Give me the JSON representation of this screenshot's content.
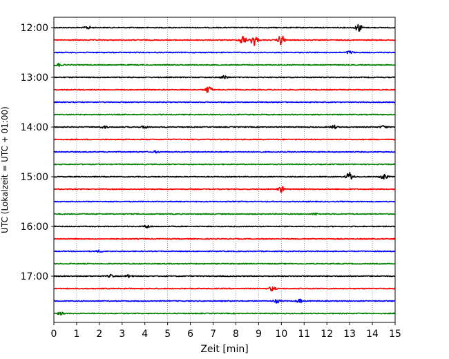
{
  "chart_data": {
    "type": "line",
    "title": "",
    "xlabel": "Zeit  [min]",
    "ylabel": "UTC (Lokalzeit = UTC + 01:00)",
    "xlim": [
      0,
      15
    ],
    "x_ticks": [
      "0",
      "1",
      "2",
      "3",
      "4",
      "5",
      "6",
      "7",
      "8",
      "9",
      "10",
      "11",
      "12",
      "13",
      "14",
      "15"
    ],
    "y_ticks": [
      "12:00",
      "13:00",
      "14:00",
      "15:00",
      "16:00",
      "17:00"
    ],
    "grid": "vertical dotted lines at each minute",
    "legend": "none",
    "trace_colors": [
      "#000000",
      "#ff0000",
      "#0000ff",
      "#008000"
    ],
    "series": [
      {
        "start": "12:00",
        "color": "#000000",
        "events": [
          {
            "minute": 1.5,
            "amp": 0.12
          },
          {
            "minute": 13.4,
            "amp": 0.35
          }
        ]
      },
      {
        "start": "12:15",
        "color": "#ff0000",
        "events": [
          {
            "minute": 8.3,
            "amp": 0.4
          },
          {
            "minute": 8.8,
            "amp": 0.5
          },
          {
            "minute": 10.0,
            "amp": 0.45
          }
        ]
      },
      {
        "start": "12:30",
        "color": "#0000ff",
        "events": [
          {
            "minute": 13.0,
            "amp": 0.12
          }
        ]
      },
      {
        "start": "12:45",
        "color": "#008000",
        "events": [
          {
            "minute": 0.2,
            "amp": 0.12
          }
        ]
      },
      {
        "start": "13:00",
        "color": "#000000",
        "events": [
          {
            "minute": 7.5,
            "amp": 0.15
          }
        ]
      },
      {
        "start": "13:15",
        "color": "#ff0000",
        "events": [
          {
            "minute": 6.8,
            "amp": 0.3
          }
        ]
      },
      {
        "start": "13:30",
        "color": "#0000ff",
        "events": []
      },
      {
        "start": "13:45",
        "color": "#008000",
        "events": []
      },
      {
        "start": "14:00",
        "color": "#000000",
        "events": [
          {
            "minute": 2.2,
            "amp": 0.1
          },
          {
            "minute": 4.0,
            "amp": 0.12
          },
          {
            "minute": 12.3,
            "amp": 0.15
          },
          {
            "minute": 14.5,
            "amp": 0.12
          }
        ]
      },
      {
        "start": "14:15",
        "color": "#ff0000",
        "events": []
      },
      {
        "start": "14:30",
        "color": "#0000ff",
        "events": [
          {
            "minute": 4.5,
            "amp": 0.08
          }
        ]
      },
      {
        "start": "14:45",
        "color": "#008000",
        "events": []
      },
      {
        "start": "15:00",
        "color": "#000000",
        "events": [
          {
            "minute": 13.0,
            "amp": 0.4
          },
          {
            "minute": 14.5,
            "amp": 0.25
          }
        ]
      },
      {
        "start": "15:15",
        "color": "#ff0000",
        "events": [
          {
            "minute": 10.0,
            "amp": 0.25
          }
        ]
      },
      {
        "start": "15:30",
        "color": "#0000ff",
        "events": []
      },
      {
        "start": "15:45",
        "color": "#008000",
        "events": [
          {
            "minute": 11.5,
            "amp": 0.08
          }
        ]
      },
      {
        "start": "16:00",
        "color": "#000000",
        "events": [
          {
            "minute": 4.1,
            "amp": 0.12
          }
        ]
      },
      {
        "start": "16:15",
        "color": "#ff0000",
        "events": []
      },
      {
        "start": "16:30",
        "color": "#0000ff",
        "events": [
          {
            "minute": 2.0,
            "amp": 0.08
          }
        ]
      },
      {
        "start": "16:45",
        "color": "#008000",
        "events": []
      },
      {
        "start": "17:00",
        "color": "#000000",
        "events": [
          {
            "minute": 2.5,
            "amp": 0.12
          },
          {
            "minute": 3.3,
            "amp": 0.12
          }
        ]
      },
      {
        "start": "17:15",
        "color": "#ff0000",
        "events": [
          {
            "minute": 9.6,
            "amp": 0.2
          }
        ]
      },
      {
        "start": "17:30",
        "color": "#0000ff",
        "events": [
          {
            "minute": 9.8,
            "amp": 0.15
          },
          {
            "minute": 10.8,
            "amp": 0.15
          }
        ]
      },
      {
        "start": "17:45",
        "color": "#008000",
        "events": [
          {
            "minute": 0.3,
            "amp": 0.1
          }
        ]
      }
    ]
  }
}
